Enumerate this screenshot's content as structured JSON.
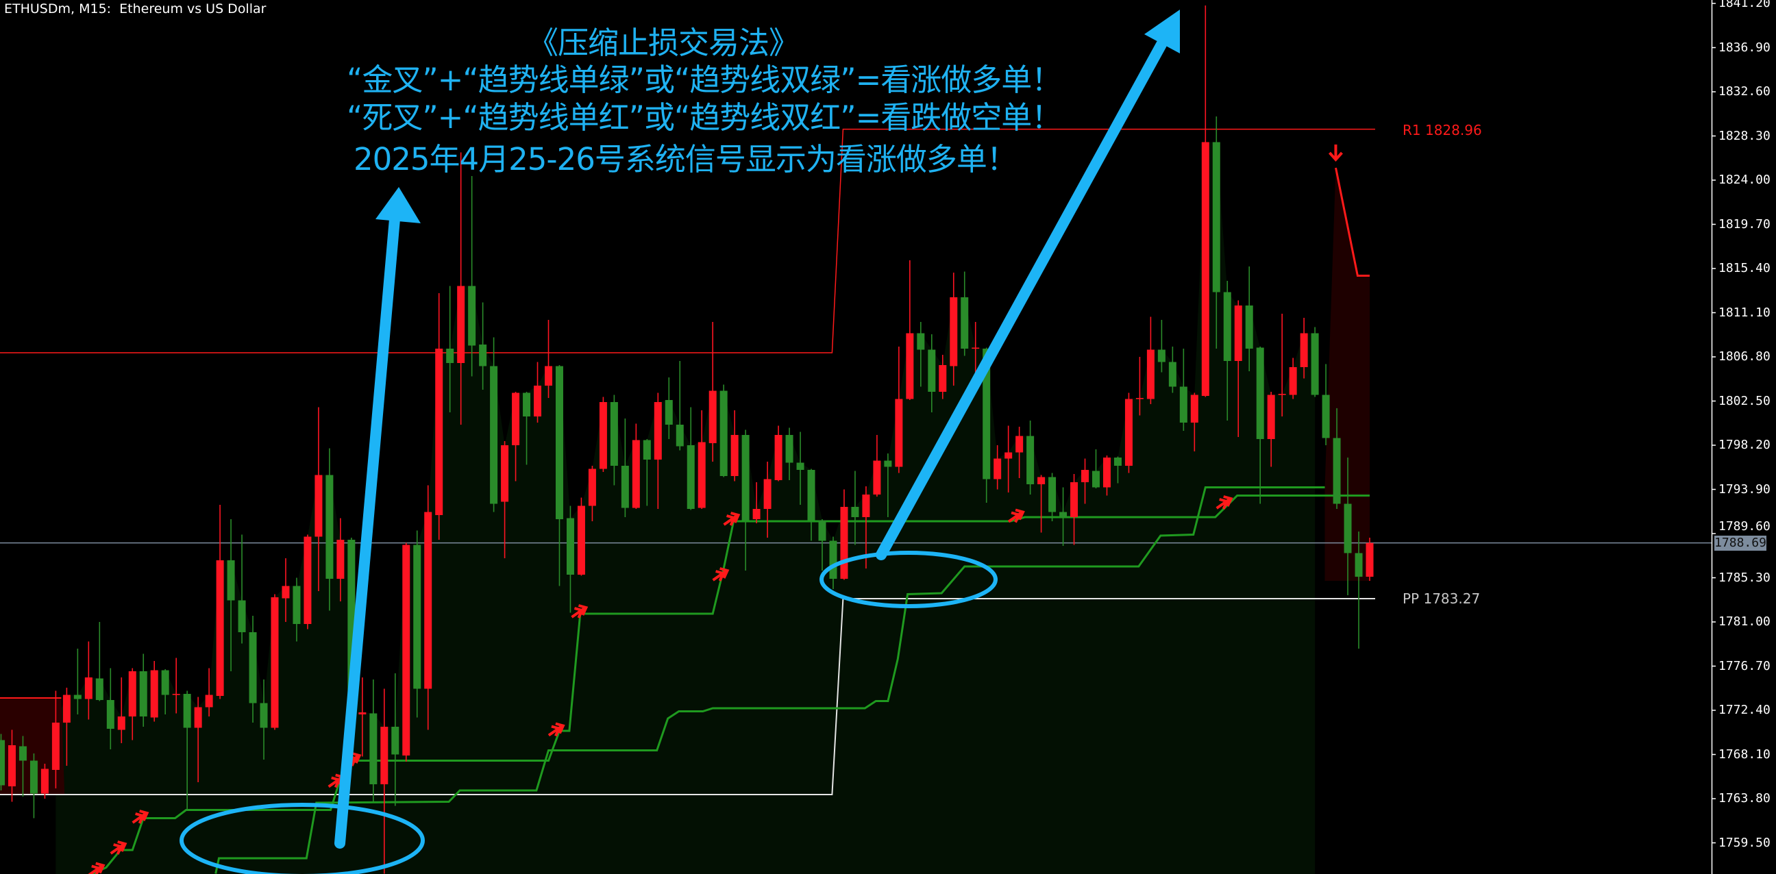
{
  "header": {
    "title": "ETHUSDm, M15:  Ethereum vs US Dollar"
  },
  "annotation": {
    "lines": [
      "《压缩止损交易法》",
      "“金叉”+“趋势线单绿”或“趋势线双绿”=看涨做多单！",
      "“死叉”+“趋势线单红”或“趋势线双红”=看跌做空单！",
      "2025年4月25-26号系统信号显示为看涨做多单！"
    ],
    "color": "#1fb2f2"
  },
  "levels": {
    "r1_label": "R1 1828.96",
    "pp_label": "PP 1783.27"
  },
  "chart_data": {
    "type": "candlestick",
    "symbol": "ETHUSDm",
    "timeframe": "M15",
    "ylim": [
      1756.47,
      1841.53
    ],
    "yticks": [
      "1841.20",
      "1836.90",
      "1832.60",
      "1828.30",
      "1824.00",
      "1819.70",
      "1815.40",
      "1811.10",
      "1806.80",
      "1802.50",
      "1798.20",
      "1793.90",
      "1789.60",
      "1785.30",
      "1781.00",
      "1776.70",
      "1772.40",
      "1768.10",
      "1763.80",
      "1759.50"
    ],
    "current_price": 1788.69,
    "current_price_label": "1788.69",
    "colors": {
      "bull": "#ff1422",
      "bear": "#2a8c2a",
      "trend": "#1f9a1f",
      "r1": "#ff1a1a",
      "pp": "#e6e6e6",
      "price_line": "#7d8c9e"
    },
    "candles_ohlc": [
      [
        1769.5,
        1770.1,
        1764.6,
        1765.1
      ],
      [
        1765.0,
        1770.5,
        1763.5,
        1769.0
      ],
      [
        1768.9,
        1769.9,
        1764.0,
        1767.5
      ],
      [
        1767.5,
        1768.2,
        1761.9,
        1764.3
      ],
      [
        1764.3,
        1767.2,
        1763.8,
        1766.7
      ],
      [
        1766.6,
        1774.3,
        1764.8,
        1771.2
      ],
      [
        1771.2,
        1774.6,
        1767.0,
        1773.9
      ],
      [
        1773.9,
        1778.4,
        1772.0,
        1773.5
      ],
      [
        1773.5,
        1779.1,
        1771.5,
        1775.6
      ],
      [
        1775.5,
        1781.0,
        1773.3,
        1773.4
      ],
      [
        1773.4,
        1776.5,
        1768.6,
        1770.6
      ],
      [
        1770.5,
        1775.6,
        1769.2,
        1771.8
      ],
      [
        1771.8,
        1776.5,
        1769.5,
        1776.2
      ],
      [
        1776.2,
        1777.9,
        1770.8,
        1771.8
      ],
      [
        1771.7,
        1777.2,
        1771.3,
        1776.3
      ],
      [
        1776.3,
        1776.4,
        1772.0,
        1773.9
      ],
      [
        1773.9,
        1777.5,
        1772.1,
        1774.0
      ],
      [
        1774.0,
        1774.3,
        1762.7,
        1770.7
      ],
      [
        1770.7,
        1773.7,
        1765.4,
        1772.7
      ],
      [
        1772.7,
        1776.5,
        1771.8,
        1773.9
      ],
      [
        1773.8,
        1792.4,
        1773.5,
        1787.0
      ],
      [
        1787.0,
        1791.0,
        1776.2,
        1783.1
      ],
      [
        1783.1,
        1789.5,
        1778.9,
        1780.0
      ],
      [
        1780.0,
        1781.6,
        1771.2,
        1773.1
      ],
      [
        1773.1,
        1775.4,
        1767.6,
        1770.7
      ],
      [
        1770.7,
        1783.7,
        1770.5,
        1783.4
      ],
      [
        1783.3,
        1787.2,
        1781.0,
        1784.5
      ],
      [
        1784.5,
        1785.3,
        1779.1,
        1780.8
      ],
      [
        1780.8,
        1789.5,
        1780.3,
        1789.3
      ],
      [
        1789.3,
        1801.9,
        1784.0,
        1795.3
      ],
      [
        1795.3,
        1797.9,
        1782.1,
        1785.2
      ],
      [
        1785.2,
        1791.1,
        1783.0,
        1789.0
      ],
      [
        1789.0,
        1789.2,
        1771.8,
        1772.0
      ],
      [
        1772.0,
        1775.6,
        1767.9,
        1772.2
      ],
      [
        1772.1,
        1775.4,
        1763.5,
        1765.2
      ],
      [
        1765.2,
        1774.5,
        1756.5,
        1770.8
      ],
      [
        1770.8,
        1776.0,
        1763.1,
        1768.1
      ],
      [
        1768.0,
        1788.7,
        1767.4,
        1788.5
      ],
      [
        1788.5,
        1789.9,
        1771.7,
        1774.5
      ],
      [
        1774.5,
        1794.3,
        1770.5,
        1791.7
      ],
      [
        1791.4,
        1813.0,
        1789.0,
        1807.6
      ],
      [
        1807.6,
        1813.7,
        1801.4,
        1806.2
      ],
      [
        1806.2,
        1826.7,
        1800.2,
        1813.7
      ],
      [
        1813.7,
        1824.4,
        1804.9,
        1807.9
      ],
      [
        1808.0,
        1812.1,
        1803.6,
        1805.9
      ],
      [
        1805.9,
        1808.7,
        1791.7,
        1792.5
      ],
      [
        1792.7,
        1798.6,
        1787.2,
        1798.2
      ],
      [
        1798.2,
        1803.4,
        1794.7,
        1803.3
      ],
      [
        1803.3,
        1803.4,
        1796.3,
        1801.0
      ],
      [
        1801.0,
        1806.3,
        1800.4,
        1804.0
      ],
      [
        1804.0,
        1810.4,
        1802.8,
        1805.9
      ],
      [
        1805.9,
        1806.0,
        1784.5,
        1791.0
      ],
      [
        1791.1,
        1792.3,
        1781.9,
        1785.6
      ],
      [
        1785.6,
        1793.1,
        1785.5,
        1792.3
      ],
      [
        1792.3,
        1796.2,
        1790.8,
        1795.9
      ],
      [
        1795.9,
        1802.9,
        1795.6,
        1802.4
      ],
      [
        1802.4,
        1803.1,
        1794.3,
        1796.2
      ],
      [
        1796.2,
        1800.8,
        1791.2,
        1792.1
      ],
      [
        1792.1,
        1800.3,
        1792.0,
        1798.7
      ],
      [
        1798.7,
        1798.8,
        1792.3,
        1796.8
      ],
      [
        1796.8,
        1803.3,
        1792.0,
        1802.4
      ],
      [
        1802.6,
        1804.8,
        1798.8,
        1800.2
      ],
      [
        1800.2,
        1806.4,
        1797.7,
        1798.1
      ],
      [
        1798.2,
        1801.9,
        1791.9,
        1792.0
      ],
      [
        1792.1,
        1801.6,
        1792.0,
        1798.5
      ],
      [
        1798.4,
        1810.2,
        1796.6,
        1803.5
      ],
      [
        1803.5,
        1804.1,
        1795.1,
        1795.2
      ],
      [
        1795.2,
        1801.6,
        1794.7,
        1799.2
      ],
      [
        1799.2,
        1799.7,
        1786.0,
        1790.9
      ],
      [
        1791.0,
        1794.6,
        1790.6,
        1792.0
      ],
      [
        1792.0,
        1796.6,
        1789.2,
        1794.9
      ],
      [
        1794.8,
        1800.1,
        1794.7,
        1799.2
      ],
      [
        1799.2,
        1799.9,
        1794.8,
        1796.5
      ],
      [
        1796.5,
        1799.5,
        1792.4,
        1795.8
      ],
      [
        1795.8,
        1795.9,
        1788.9,
        1790.9
      ],
      [
        1790.9,
        1791.0,
        1786.0,
        1788.9
      ],
      [
        1788.9,
        1789.3,
        1784.2,
        1785.2
      ],
      [
        1785.2,
        1793.9,
        1785.1,
        1792.2
      ],
      [
        1792.2,
        1795.7,
        1788.5,
        1791.2
      ],
      [
        1791.2,
        1794.2,
        1786.2,
        1793.4
      ],
      [
        1793.4,
        1799.2,
        1793.2,
        1796.7
      ],
      [
        1796.7,
        1797.4,
        1791.2,
        1796.1
      ],
      [
        1796.1,
        1807.8,
        1795.5,
        1802.7
      ],
      [
        1802.7,
        1816.2,
        1802.6,
        1809.1
      ],
      [
        1809.1,
        1810.2,
        1803.9,
        1807.5
      ],
      [
        1807.5,
        1809.0,
        1801.4,
        1803.4
      ],
      [
        1803.4,
        1807.0,
        1802.7,
        1806.0
      ],
      [
        1805.9,
        1815.0,
        1804.0,
        1812.6
      ],
      [
        1812.6,
        1815.1,
        1806.9,
        1807.6
      ],
      [
        1807.6,
        1810.2,
        1804.7,
        1807.7
      ],
      [
        1807.6,
        1807.7,
        1792.6,
        1794.9
      ],
      [
        1794.9,
        1798.2,
        1793.9,
        1796.9
      ],
      [
        1796.9,
        1800.1,
        1793.6,
        1797.5
      ],
      [
        1797.5,
        1800.0,
        1795.0,
        1799.1
      ],
      [
        1799.1,
        1800.6,
        1793.4,
        1794.4
      ],
      [
        1794.4,
        1795.3,
        1789.7,
        1795.1
      ],
      [
        1795.1,
        1795.5,
        1790.8,
        1791.7
      ],
      [
        1791.7,
        1794.1,
        1788.4,
        1791.2
      ],
      [
        1791.2,
        1795.4,
        1788.5,
        1794.6
      ],
      [
        1794.6,
        1796.9,
        1792.5,
        1795.8
      ],
      [
        1795.7,
        1797.8,
        1794.0,
        1794.1
      ],
      [
        1794.1,
        1797.2,
        1793.3,
        1797.0
      ],
      [
        1797.0,
        1797.1,
        1794.5,
        1796.2
      ],
      [
        1796.2,
        1803.3,
        1795.5,
        1802.7
      ],
      [
        1802.7,
        1806.8,
        1801.1,
        1802.8
      ],
      [
        1802.7,
        1810.7,
        1802.2,
        1807.5
      ],
      [
        1807.5,
        1810.4,
        1805.3,
        1806.3
      ],
      [
        1806.3,
        1807.8,
        1803.3,
        1803.9
      ],
      [
        1803.9,
        1807.6,
        1799.6,
        1800.4
      ],
      [
        1800.4,
        1803.3,
        1797.6,
        1803.1
      ],
      [
        1803.0,
        1841.0,
        1802.9,
        1827.7
      ],
      [
        1827.7,
        1830.2,
        1807.6,
        1813.1
      ],
      [
        1813.1,
        1814.2,
        1800.6,
        1806.4
      ],
      [
        1806.4,
        1812.3,
        1799.0,
        1811.8
      ],
      [
        1811.8,
        1815.6,
        1805.4,
        1807.6
      ],
      [
        1807.7,
        1807.8,
        1792.5,
        1798.8
      ],
      [
        1798.8,
        1803.4,
        1796.1,
        1803.1
      ],
      [
        1803.1,
        1811.0,
        1801.0,
        1803.2
      ],
      [
        1803.1,
        1806.7,
        1802.7,
        1805.8
      ],
      [
        1805.8,
        1810.6,
        1804.7,
        1809.1
      ],
      [
        1809.1,
        1809.7,
        1802.9,
        1803.1
      ],
      [
        1803.1,
        1806.1,
        1798.2,
        1798.9
      ],
      [
        1798.9,
        1801.8,
        1792.0,
        1792.5
      ],
      [
        1792.5,
        1797.0,
        1783.6,
        1787.7
      ],
      [
        1787.7,
        1789.8,
        1778.4,
        1785.4
      ],
      [
        1785.4,
        1789.2,
        1785.0,
        1788.69
      ]
    ],
    "pivot_levels": {
      "r1": {
        "value": 1828.96,
        "previous": 1807.2
      },
      "pp": {
        "value": 1783.27,
        "previous": 1764.2
      },
      "prev_resistance_box": 1773.6
    },
    "trend_lines": [
      {
        "points": [
          [
            8.4,
            1756.5
          ],
          [
            9.6,
            1757.1
          ],
          [
            10.9,
            1758.8
          ],
          [
            12.0,
            1758.8
          ],
          [
            13.0,
            1761.9
          ],
          [
            15.9,
            1761.9
          ],
          [
            16.9,
            1762.7
          ],
          [
            30.1,
            1762.7
          ],
          [
            30.8,
            1765.1
          ],
          [
            31.5,
            1767.5
          ],
          [
            50.0,
            1767.5
          ],
          [
            51.0,
            1770.4
          ],
          [
            51.9,
            1770.4
          ],
          [
            52.9,
            1781.8
          ],
          [
            65.0,
            1781.8
          ],
          [
            66.0,
            1786.2
          ],
          [
            66.9,
            1790.8
          ],
          [
            92.2,
            1790.8
          ],
          [
            93.5,
            1791.2
          ],
          [
            110.9,
            1791.2
          ],
          [
            112.9,
            1793.3
          ],
          [
            125.0,
            1793.3
          ]
        ]
      },
      {
        "points": [
          [
            19.6,
            1756.5
          ],
          [
            19.9,
            1758.0
          ],
          [
            27.9,
            1758.0
          ],
          [
            28.8,
            1763.4
          ],
          [
            40.9,
            1763.5
          ],
          [
            41.9,
            1764.6
          ],
          [
            48.9,
            1764.6
          ],
          [
            50.0,
            1768.5
          ],
          [
            59.9,
            1768.5
          ],
          [
            60.9,
            1771.6
          ],
          [
            61.9,
            1772.3
          ],
          [
            64.1,
            1772.3
          ],
          [
            65.0,
            1772.6
          ],
          [
            78.9,
            1772.6
          ],
          [
            79.9,
            1773.3
          ],
          [
            81.0,
            1773.3
          ],
          [
            81.9,
            1777.4
          ],
          [
            82.8,
            1783.7
          ],
          [
            85.9,
            1783.8
          ],
          [
            88.0,
            1786.4
          ],
          [
            103.9,
            1786.4
          ],
          [
            105.9,
            1789.4
          ],
          [
            108.9,
            1789.5
          ],
          [
            110.0,
            1794.1
          ],
          [
            120.9,
            1794.1
          ]
        ]
      }
    ],
    "bear_line": {
      "points": [
        [
          121.9,
          1825.2
        ],
        [
          123.9,
          1814.7
        ],
        [
          125.0,
          1814.7
        ]
      ]
    },
    "signal_arrows_up": [
      [
        8.9,
        1756.9
      ],
      [
        10.9,
        1759.0
      ],
      [
        12.9,
        1762.0
      ],
      [
        30.8,
        1765.5
      ],
      [
        32.3,
        1767.6
      ],
      [
        50.9,
        1770.5
      ],
      [
        53.0,
        1782.0
      ],
      [
        65.9,
        1785.6
      ],
      [
        66.9,
        1791.0
      ],
      [
        92.9,
        1791.3
      ],
      [
        111.9,
        1792.6
      ]
    ],
    "signal_arrows_down": [
      [
        121.9,
        1826.0
      ]
    ]
  }
}
